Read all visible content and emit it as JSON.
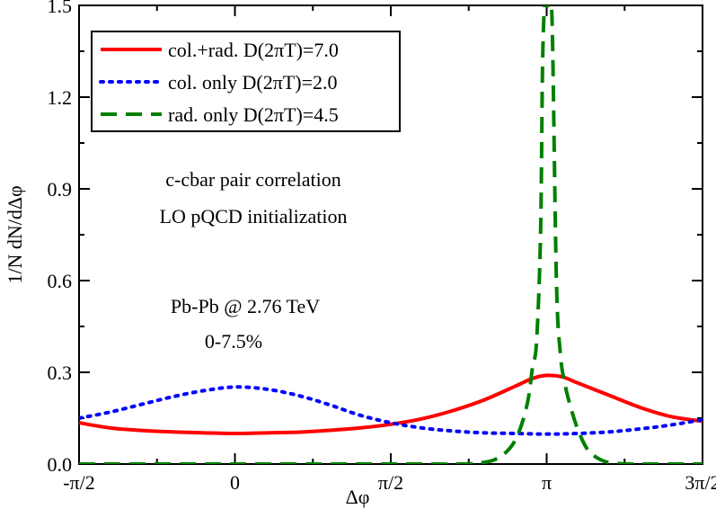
{
  "chart_data": {
    "type": "line",
    "title": "",
    "xlabel": "Δφ",
    "ylabel": "1/N dN/dΔφ",
    "xlim": [
      -1.5708,
      4.7124
    ],
    "ylim": [
      0.0,
      1.5
    ],
    "grid": false,
    "legend_position": "top-left",
    "xticks": [
      {
        "value": -1.5708,
        "label": "-π/2"
      },
      {
        "value": 0,
        "label": "0"
      },
      {
        "value": 1.5708,
        "label": "π/2"
      },
      {
        "value": 3.1416,
        "label": "π"
      },
      {
        "value": 4.7124,
        "label": "3π/2"
      }
    ],
    "yticks": [
      {
        "value": 0.0,
        "label": "0.0"
      },
      {
        "value": 0.3,
        "label": "0.3"
      },
      {
        "value": 0.6,
        "label": "0.6"
      },
      {
        "value": 0.9,
        "label": "0.9"
      },
      {
        "value": 1.2,
        "label": "1.2"
      },
      {
        "value": 1.5,
        "label": "1.5"
      }
    ],
    "annotations": [
      "c-cbar pair correlation",
      "LO pQCD initialization",
      "Pb-Pb @ 2.76 TeV",
      "0-7.5%"
    ],
    "series": [
      {
        "name": "col.+rad. D(2πT)=7.0",
        "color": "#ff0000",
        "style": "solid",
        "x": [
          -1.5708,
          -1.2566,
          -0.9425,
          -0.6283,
          -0.3142,
          0.0,
          0.3142,
          0.6283,
          0.9425,
          1.2566,
          1.5708,
          1.885,
          2.1991,
          2.5133,
          2.8274,
          3.0,
          3.1416,
          3.3,
          3.4558,
          3.7699,
          4.0841,
          4.3982,
          4.7124
        ],
        "y": [
          0.135,
          0.118,
          0.11,
          0.105,
          0.102,
          0.1,
          0.102,
          0.104,
          0.11,
          0.118,
          0.13,
          0.148,
          0.175,
          0.21,
          0.255,
          0.28,
          0.29,
          0.285,
          0.265,
          0.225,
          0.185,
          0.155,
          0.14
        ]
      },
      {
        "name": "col. only D(2πT)=2.0",
        "color": "#0000ff",
        "style": "dotted",
        "x": [
          -1.5708,
          -1.2566,
          -0.9425,
          -0.6283,
          -0.3142,
          0.0,
          0.3142,
          0.6283,
          0.9425,
          1.2566,
          1.5708,
          1.885,
          2.1991,
          2.5133,
          2.8274,
          3.1416,
          3.4558,
          3.7699,
          4.0841,
          4.3982,
          4.7124
        ],
        "y": [
          0.15,
          0.17,
          0.195,
          0.22,
          0.24,
          0.252,
          0.245,
          0.225,
          0.195,
          0.16,
          0.135,
          0.118,
          0.108,
          0.102,
          0.1,
          0.098,
          0.1,
          0.105,
          0.115,
          0.128,
          0.145
        ]
      },
      {
        "name": "rad. only D(2πT)=4.5",
        "color": "#008000",
        "style": "dashed",
        "x": [
          -1.5708,
          0.0,
          1.5708,
          2.3,
          2.45,
          2.6,
          2.72,
          2.82,
          2.9,
          2.96,
          3.0,
          3.04,
          3.08,
          3.1,
          3.12,
          3.14,
          3.16,
          3.18,
          3.2,
          3.24,
          3.28,
          3.32,
          3.38,
          3.46,
          3.56,
          3.7,
          3.85,
          4.1,
          4.7124
        ],
        "y": [
          0.0,
          0.0,
          0.0,
          0.0,
          0.003,
          0.012,
          0.035,
          0.075,
          0.14,
          0.22,
          0.32,
          0.4,
          0.75,
          1.3,
          1.5,
          1.5,
          1.5,
          1.5,
          1.4,
          0.6,
          0.36,
          0.27,
          0.19,
          0.11,
          0.045,
          0.012,
          0.002,
          0.0,
          0.0
        ]
      }
    ]
  }
}
